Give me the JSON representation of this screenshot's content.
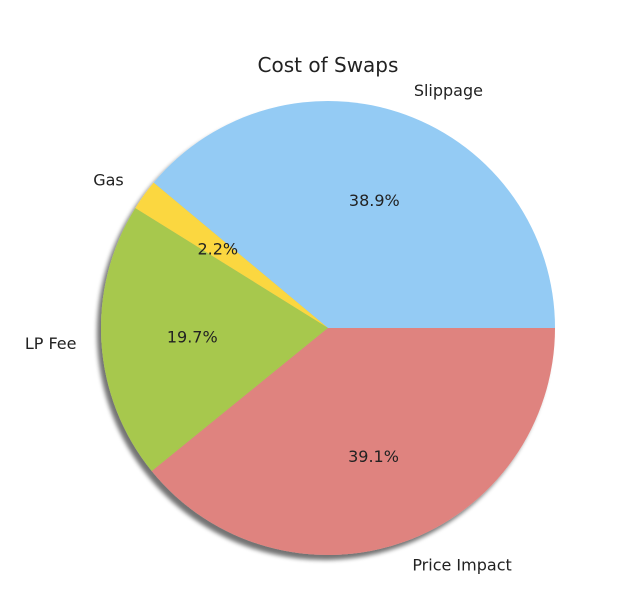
{
  "chart_data": {
    "type": "pie",
    "title": "Cost of Swaps",
    "unit": "%",
    "slices": [
      {
        "label": "Slippage",
        "value": 38.9,
        "pct_text": "38.9%",
        "color": "#94cbf4"
      },
      {
        "label": "Gas",
        "value": 2.2,
        "pct_text": "2.2%",
        "color": "#fbd741"
      },
      {
        "label": "LP Fee",
        "value": 19.7,
        "pct_text": "19.7%",
        "color": "#a7c84e"
      },
      {
        "label": "Price Impact",
        "value": 39.1,
        "pct_text": "39.1%",
        "color": "#df837f"
      }
    ],
    "start_angle_deg": 0,
    "direction": "counterclockwise",
    "shadow": true
  }
}
